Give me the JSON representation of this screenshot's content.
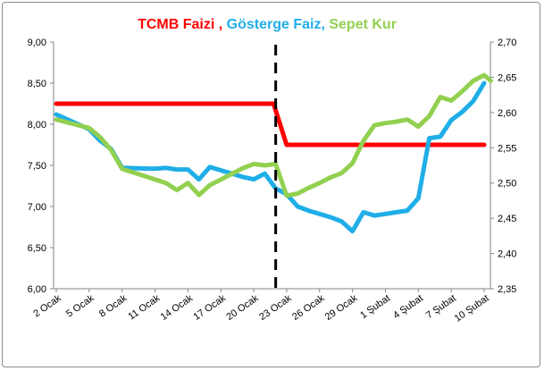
{
  "chart_data": {
    "type": "line",
    "title_parts": [
      {
        "text": "TCMB Faizi",
        "color": "#ff0000"
      },
      {
        "text": " , ",
        "color": "#ff0000"
      },
      {
        "text": "Gösterge Faiz",
        "color": "#1faee8"
      },
      {
        "text": ", ",
        "color": "#1faee8"
      },
      {
        "text": "Sepet Kur",
        "color": "#92d050"
      }
    ],
    "x_tick_labels": [
      "2 Ocak",
      "5 Ocak",
      "8 Ocak",
      "11 Ocak",
      "14 Ocak",
      "17 Ocak",
      "20 Ocak",
      "23 Ocak",
      "26 Ocak",
      "29 Ocak",
      "1 Şubat",
      "4 Şubat",
      "7 Şubat",
      "10 Şubat"
    ],
    "y_left": {
      "min": 6.0,
      "max": 9.0,
      "step": 0.5,
      "tick_labels": [
        "6,00",
        "6,50",
        "7,00",
        "7,50",
        "8,00",
        "8,50",
        "9,00"
      ]
    },
    "y_right": {
      "min": 2.35,
      "max": 2.7,
      "step": 0.05,
      "tick_labels": [
        "2,35",
        "2,40",
        "2,45",
        "2,50",
        "2,55",
        "2,60",
        "2,65",
        "2,70"
      ]
    },
    "x_range": [
      0,
      39
    ],
    "grid": false,
    "divider_x": 20,
    "series": [
      {
        "key": "tcmb",
        "axis": "left",
        "color": "#ff0000",
        "points": [
          [
            0,
            8.25
          ],
          [
            19.8,
            8.25
          ],
          [
            21,
            7.75
          ],
          [
            39,
            7.75
          ]
        ]
      },
      {
        "key": "gosterge",
        "axis": "left",
        "color": "#1faee8",
        "points": [
          [
            0,
            8.12
          ],
          [
            3,
            7.94
          ],
          [
            4,
            7.8
          ],
          [
            5,
            7.7
          ],
          [
            6,
            7.47
          ],
          [
            9,
            7.46
          ],
          [
            10,
            7.47
          ],
          [
            11,
            7.45
          ],
          [
            12,
            7.45
          ],
          [
            13,
            7.33
          ],
          [
            14,
            7.48
          ],
          [
            15,
            7.44
          ],
          [
            16,
            7.4
          ],
          [
            17,
            7.36
          ],
          [
            18,
            7.33
          ],
          [
            19,
            7.4
          ],
          [
            20,
            7.22
          ],
          [
            21,
            7.15
          ],
          [
            22,
            7.0
          ],
          [
            23,
            6.95
          ],
          [
            24,
            6.91
          ],
          [
            25,
            6.87
          ],
          [
            26,
            6.82
          ],
          [
            27,
            6.7
          ],
          [
            28,
            6.93
          ],
          [
            29,
            6.89
          ],
          [
            30,
            6.91
          ],
          [
            31,
            6.93
          ],
          [
            32,
            6.95
          ],
          [
            33,
            7.1
          ],
          [
            34,
            7.83
          ],
          [
            35,
            7.85
          ],
          [
            36,
            8.05
          ],
          [
            37,
            8.15
          ],
          [
            38,
            8.28
          ],
          [
            39,
            8.5
          ]
        ]
      },
      {
        "key": "sepet",
        "axis": "right",
        "color": "#92d050",
        "points": [
          [
            0,
            2.59
          ],
          [
            3,
            2.578
          ],
          [
            4,
            2.565
          ],
          [
            5,
            2.547
          ],
          [
            6,
            2.52
          ],
          [
            7,
            2.515
          ],
          [
            8,
            2.51
          ],
          [
            9,
            2.505
          ],
          [
            10,
            2.5
          ],
          [
            11,
            2.49
          ],
          [
            12,
            2.5
          ],
          [
            13,
            2.483
          ],
          [
            14,
            2.497
          ],
          [
            15,
            2.505
          ],
          [
            16,
            2.513
          ],
          [
            17,
            2.521
          ],
          [
            18,
            2.527
          ],
          [
            19,
            2.525
          ],
          [
            20,
            2.527
          ],
          [
            21,
            2.482
          ],
          [
            22,
            2.485
          ],
          [
            23,
            2.493
          ],
          [
            24,
            2.5
          ],
          [
            25,
            2.508
          ],
          [
            26,
            2.514
          ],
          [
            27,
            2.528
          ],
          [
            28,
            2.56
          ],
          [
            29,
            2.582
          ],
          [
            30,
            2.585
          ],
          [
            31,
            2.587
          ],
          [
            32,
            2.59
          ],
          [
            33,
            2.58
          ],
          [
            34,
            2.595
          ],
          [
            35,
            2.622
          ],
          [
            36,
            2.617
          ],
          [
            37,
            2.63
          ],
          [
            38,
            2.645
          ],
          [
            39,
            2.653
          ],
          [
            39.6,
            2.645
          ]
        ]
      }
    ]
  }
}
